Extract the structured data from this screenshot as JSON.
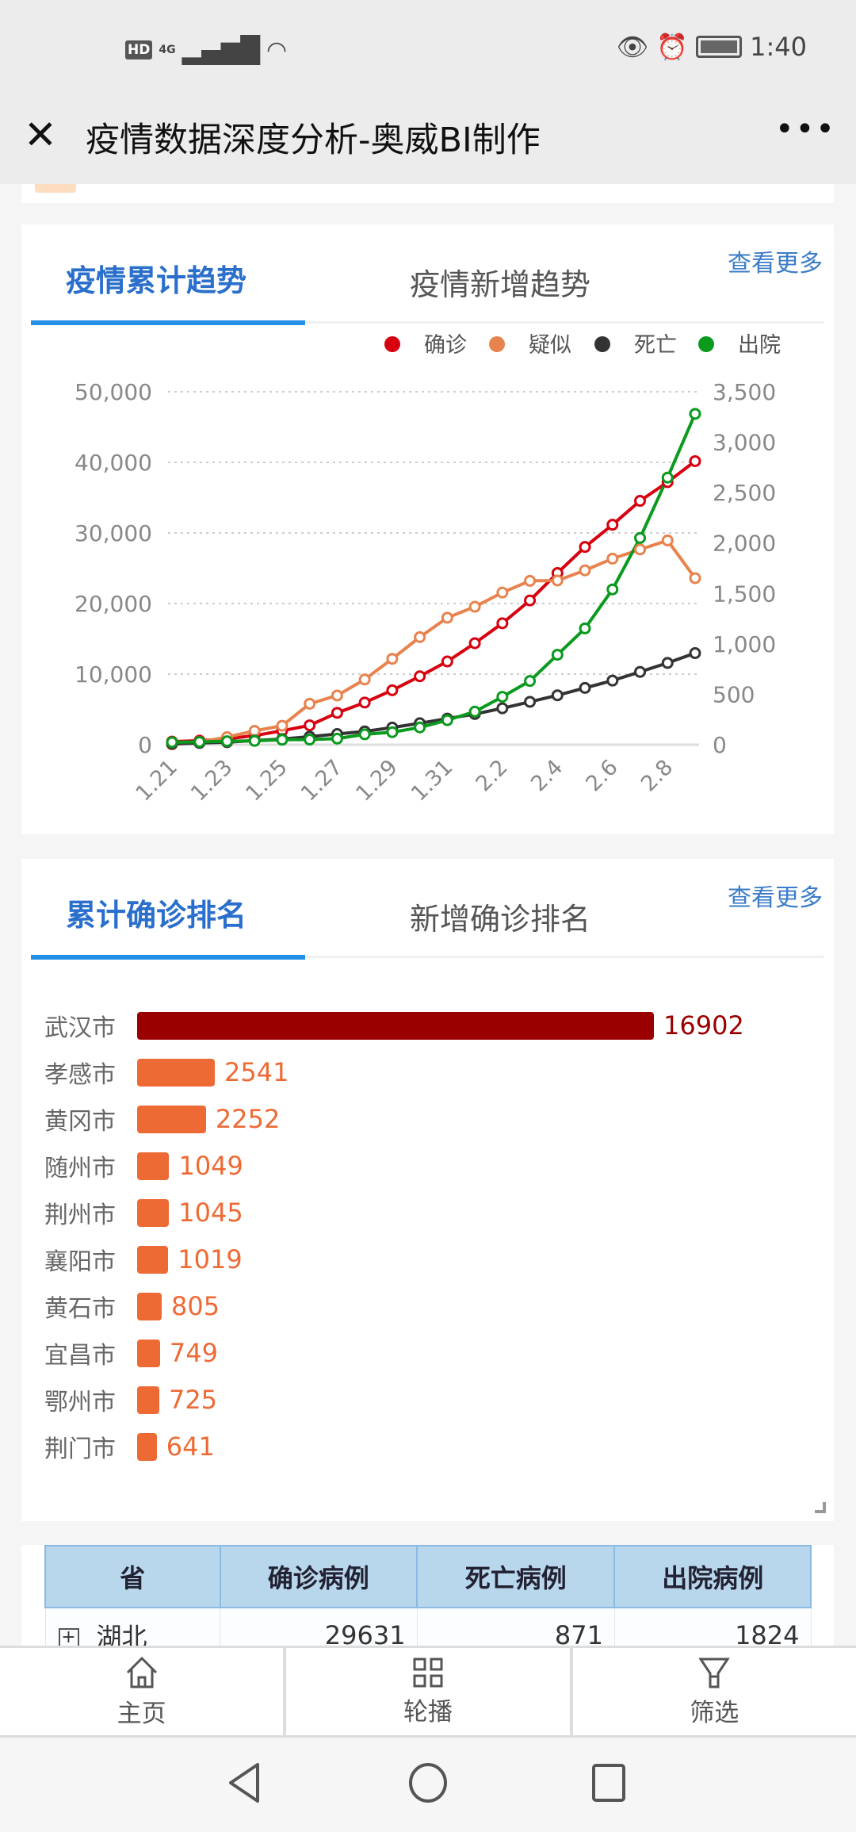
{
  "status_bar": {
    "time": "1:40",
    "network": "4G",
    "hd": "HD"
  },
  "header": {
    "title": "疫情数据深度分析-奥威BI制作",
    "close_icon": "close-icon",
    "menu_icon": "more-icon"
  },
  "trend_card": {
    "tabs": [
      {
        "label": "疫情累计趋势",
        "active": true
      },
      {
        "label": "疫情新增趋势",
        "active": false
      }
    ],
    "more_label": "查看更多"
  },
  "chart_data": {
    "type": "line",
    "categories": [
      "1.21",
      "1.22",
      "1.23",
      "1.24",
      "1.25",
      "1.26",
      "1.27",
      "1.28",
      "1.29",
      "1.30",
      "1.31",
      "2.1",
      "2.2",
      "2.3",
      "2.4",
      "2.5",
      "2.6",
      "2.7",
      "2.8",
      "2.9"
    ],
    "x_tick_labels": [
      "1.21",
      "1.23",
      "1.25",
      "1.27",
      "1.29",
      "1.31",
      "2.2",
      "2.4",
      "2.6",
      "2.8"
    ],
    "left_axis": {
      "ylim": [
        0,
        50000
      ],
      "ticks": [
        "0",
        "10,000",
        "20,000",
        "30,000",
        "40,000",
        "50,000"
      ]
    },
    "right_axis": {
      "ylim": [
        0,
        3500
      ],
      "ticks": [
        "0",
        "500",
        "1,000",
        "1,500",
        "2,000",
        "2,500",
        "3,000",
        "3,500"
      ]
    },
    "grid": true,
    "legend_position": "top-right",
    "series": [
      {
        "name": "确诊",
        "axis": "left",
        "color": "#d7000f",
        "values": [
          440,
          571,
          830,
          1287,
          1975,
          2744,
          4515,
          5974,
          7711,
          9692,
          11791,
          14380,
          17205,
          20438,
          24324,
          28018,
          31161,
          34546,
          37198,
          40171
        ]
      },
      {
        "name": "疑似",
        "axis": "left",
        "color": "#e8834e",
        "values": [
          37,
          393,
          1072,
          1965,
          2684,
          5794,
          6973,
          9239,
          12167,
          15238,
          17988,
          19544,
          21558,
          23214,
          23260,
          24702,
          26359,
          27657,
          28942,
          23589
        ]
      },
      {
        "name": "死亡",
        "axis": "right",
        "color": "#333333",
        "values": [
          9,
          17,
          25,
          41,
          56,
          80,
          106,
          132,
          170,
          213,
          259,
          304,
          361,
          425,
          490,
          563,
          636,
          722,
          811,
          908
        ]
      },
      {
        "name": "出院",
        "axis": "right",
        "color": "#0a9a1e",
        "values": [
          25,
          28,
          34,
          38,
          49,
          51,
          60,
          103,
          124,
          171,
          243,
          328,
          475,
          632,
          892,
          1153,
          1540,
          2050,
          2649,
          3281
        ]
      }
    ]
  },
  "rank_card": {
    "tabs": [
      {
        "label": "累计确诊排名",
        "active": true
      },
      {
        "label": "新增确诊排名",
        "active": false
      }
    ],
    "more_label": "查看更多",
    "top_color": "#9b0000",
    "other_color": "#ee6a35",
    "items": [
      {
        "city": "武汉市",
        "value": 16902
      },
      {
        "city": "孝感市",
        "value": 2541
      },
      {
        "city": "黄冈市",
        "value": 2252
      },
      {
        "city": "随州市",
        "value": 1049
      },
      {
        "city": "荆州市",
        "value": 1045
      },
      {
        "city": "襄阳市",
        "value": 1019
      },
      {
        "city": "黄石市",
        "value": 805
      },
      {
        "city": "宜昌市",
        "value": 749
      },
      {
        "city": "鄂州市",
        "value": 725
      },
      {
        "city": "荆门市",
        "value": 641
      }
    ]
  },
  "table": {
    "headers": [
      "省",
      "确诊病例",
      "死亡病例",
      "出院病例"
    ],
    "rows": [
      {
        "province": "湖北",
        "confirmed": "29631",
        "deaths": "871",
        "cured": "1824"
      }
    ]
  },
  "bottom_nav": [
    {
      "label": "主页",
      "icon": "home-icon"
    },
    {
      "label": "轮播",
      "icon": "grid-icon"
    },
    {
      "label": "筛选",
      "icon": "filter-icon"
    }
  ]
}
